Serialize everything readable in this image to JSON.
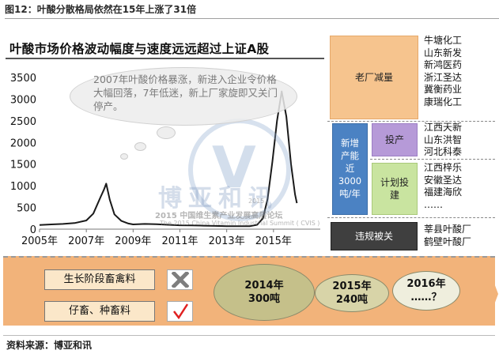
{
  "figure_title": "图12：叶酸分散格局依然在15年上涨了31倍",
  "chart_data": {
    "type": "line",
    "title": "叶酸市场价格波动幅度与速度远远超过上证A股",
    "xlabel": "",
    "ylabel": "",
    "xlim": [
      2005,
      2017
    ],
    "ylim": [
      0,
      3500
    ],
    "x_ticks": [
      "2005年",
      "2007年",
      "2009年",
      "2011年",
      "2013年",
      "2015年"
    ],
    "y_ticks": [
      "0",
      "500",
      "1000",
      "1500",
      "2000",
      "2500",
      "3000",
      "3500"
    ],
    "grid": false,
    "legend": "none",
    "series": [
      {
        "color": "#1a1a1a",
        "points": [
          [
            2005.0,
            95
          ],
          [
            2005.5,
            110
          ],
          [
            2006.0,
            120
          ],
          [
            2006.5,
            140
          ],
          [
            2007.0,
            200
          ],
          [
            2007.3,
            360
          ],
          [
            2007.6,
            730
          ],
          [
            2007.75,
            910
          ],
          [
            2007.85,
            1050
          ],
          [
            2008.0,
            680
          ],
          [
            2008.2,
            340
          ],
          [
            2008.5,
            190
          ],
          [
            2008.8,
            130
          ],
          [
            2009.0,
            110
          ],
          [
            2009.5,
            120
          ],
          [
            2010.0,
            115
          ],
          [
            2010.5,
            100
          ],
          [
            2011.0,
            90
          ],
          [
            2011.5,
            85
          ],
          [
            2012.0,
            80
          ],
          [
            2012.5,
            75
          ],
          [
            2013.0,
            70
          ],
          [
            2013.5,
            68
          ],
          [
            2014.0,
            70
          ],
          [
            2014.3,
            100
          ],
          [
            2014.55,
            250
          ],
          [
            2014.75,
            700
          ],
          [
            2014.95,
            1550
          ],
          [
            2015.15,
            2500
          ],
          [
            2015.35,
            3180
          ],
          [
            2015.55,
            2600
          ],
          [
            2015.75,
            1500
          ],
          [
            2015.92,
            800
          ],
          [
            2016.0,
            600
          ]
        ]
      }
    ],
    "annotation": "2007年叶酸价格暴涨，新进入企业令价格大幅回落，7年低迷，新上厂家旋即又关门停产。"
  },
  "watermark": {
    "brand": "博亚和讯",
    "line1": "2015 中国维生素产业发展高层论坛",
    "line2": "The 2015 China Vitamin Industrial Summit ( CVIS )",
    "year": "2015"
  },
  "right_panel": {
    "old_plant_reduction": {
      "label": "老厂减量",
      "companies": [
        "牛塘化工",
        "山东新发",
        "新鸿医药",
        "浙江圣达",
        "冀衡药业",
        "康瑞化工"
      ]
    },
    "new_capacity": {
      "label": "新增产能近3000吨/年",
      "label_lines": [
        "新增",
        "产能",
        "近",
        "3000",
        "吨/年"
      ],
      "in_production": {
        "label": "投产",
        "companies": [
          "江西天新",
          "山东洪智",
          "河北科泰"
        ]
      },
      "planned": {
        "label": "计划投建",
        "label_lines": [
          "计划投",
          "建"
        ],
        "companies": [
          "江西梓乐",
          "安徽圣达",
          "福建海欣",
          "……"
        ]
      }
    },
    "violation_closed": {
      "label": "违规被关",
      "companies": [
        "莘县叶酸厂",
        "鹤壁叶酸厂"
      ]
    }
  },
  "bottom": {
    "feeds": [
      {
        "label": "生长阶段畜禽料",
        "mark": "cross"
      },
      {
        "label": "仔畜、种畜料",
        "mark": "check"
      }
    ],
    "timeline": [
      {
        "year": "2014年",
        "amount": "300吨",
        "fill": "#c5c08a"
      },
      {
        "year": "2015年",
        "amount": "240吨",
        "fill": "#d8d4a8"
      },
      {
        "year": "2016年",
        "amount": "……？",
        "fill": "#efeedd"
      }
    ]
  },
  "source": "资料来源：博亚和讯"
}
